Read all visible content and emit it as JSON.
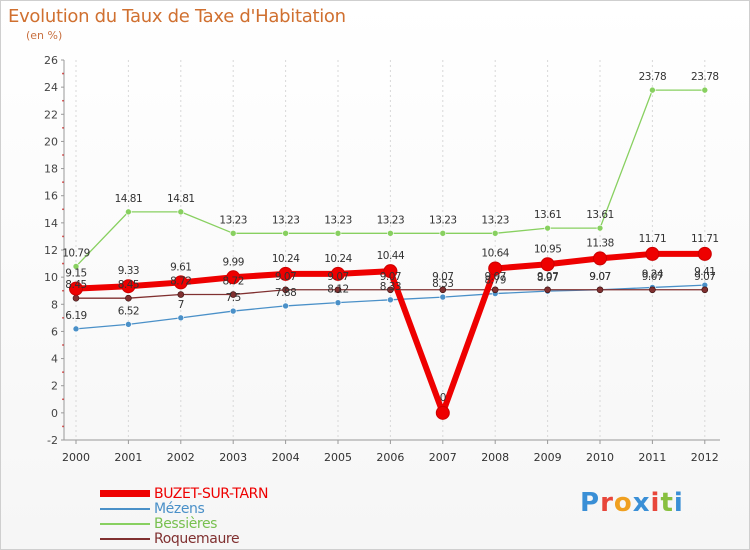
{
  "chart_data": {
    "type": "line",
    "title": "Evolution du Taux de Taxe d'Habitation",
    "subtitle": "(en %)",
    "x": [
      "2000",
      "2001",
      "2002",
      "2003",
      "2004",
      "2005",
      "2006",
      "2007",
      "2008",
      "2009",
      "2010",
      "2011",
      "2012"
    ],
    "ylim": [
      -2,
      26
    ],
    "yticks": [
      -2,
      0,
      2,
      4,
      6,
      8,
      10,
      12,
      14,
      16,
      18,
      20,
      22,
      24,
      26
    ],
    "grid": "vertical dashed",
    "legend_position": "bottom-left",
    "series": [
      {
        "name": "BUZET-SUR-TARN",
        "color": "#ee0000",
        "values": [
          9.15,
          9.33,
          9.61,
          9.99,
          10.24,
          10.24,
          10.44,
          0,
          10.64,
          10.95,
          11.38,
          11.71,
          11.71
        ]
      },
      {
        "name": "Mézens",
        "color": "#4a90c8",
        "values": [
          6.19,
          6.52,
          7,
          7.5,
          7.88,
          8.12,
          8.33,
          8.53,
          8.79,
          8.97,
          9.07,
          9.24,
          9.41
        ]
      },
      {
        "name": "Bessières",
        "color": "#88d060",
        "values": [
          10.79,
          14.81,
          14.81,
          13.23,
          13.23,
          13.23,
          13.23,
          13.23,
          13.23,
          13.61,
          13.61,
          23.78,
          23.78
        ]
      },
      {
        "name": "Roquemaure",
        "color": "#803030",
        "values": [
          8.45,
          8.45,
          8.72,
          8.72,
          9.07,
          9.07,
          9.07,
          9.07,
          9.07,
          9.07,
          9.07,
          9.07,
          9.07
        ]
      }
    ],
    "data_labels": {
      "BUZET-SUR-TARN": [
        "9.15",
        "9.33",
        "9.61",
        "9.99",
        "10.24",
        "10.24",
        "10.44",
        "0",
        "10.64",
        "10.95",
        "11.38",
        "11.71",
        "11.71"
      ],
      "Mézens": [
        "6.19",
        "6.52",
        "7",
        "7.5",
        "7.88",
        "8.12",
        "8.33",
        "8.53",
        "8.79",
        "8.97",
        "9.07",
        "9.24",
        "9.41"
      ],
      "Bessières": [
        "10.79",
        "14.81",
        "14.81",
        "13.23",
        "13.23",
        "13.23",
        "13.23",
        "13.23",
        "13.23",
        "13.61",
        "13.61",
        "23.78",
        "23.78"
      ],
      "Roquemaure": [
        "8.45",
        "8.45",
        "8.72",
        "8.72",
        "9.07",
        "9.07",
        "9.07",
        "9.07",
        "9.07",
        "9.07",
        "9.07",
        "9.07",
        "9.07"
      ]
    }
  },
  "brand": {
    "text": "Proxiti",
    "letters": [
      "P",
      "r",
      "o",
      "x",
      "i",
      "t",
      "i"
    ],
    "colors": [
      "#3a8fd6",
      "#e8463a",
      "#f0a020",
      "#3a8fd6",
      "#e8463a",
      "#88c040",
      "#3a8fd6"
    ]
  }
}
